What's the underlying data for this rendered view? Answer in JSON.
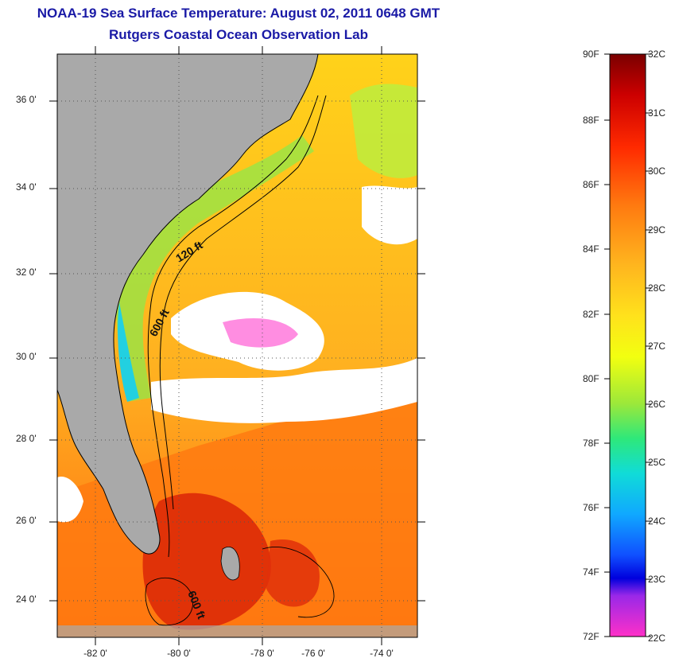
{
  "title": {
    "line1": "NOAA-19 Sea Surface Temperature:  August 02, 2011 0648 GMT",
    "line2": "Rutgers Coastal Ocean Observation Lab"
  },
  "map": {
    "latitude_labels": [
      "36 0'",
      "34 0'",
      "32 0'",
      "30 0'",
      "28 0'",
      "26 0'",
      "24 0'"
    ],
    "longitude_labels": [
      "-82 0'",
      "-80 0'",
      "-78 0'",
      "-76 0'",
      "-74 0'"
    ],
    "contour_labels": [
      "120 ft",
      "600 ft",
      "600 ft"
    ],
    "colors": {
      "land": "#a9a9a9",
      "cloud": "#ffffff"
    }
  },
  "colorbar": {
    "fahrenheit_labels": [
      "90F",
      "88F",
      "86F",
      "84F",
      "82F",
      "80F",
      "78F",
      "76F",
      "74F",
      "72F"
    ],
    "celsius_labels": [
      "32C",
      "31C",
      "30C",
      "29C",
      "28C",
      "27C",
      "26C",
      "25C",
      "24C",
      "23C",
      "22C"
    ],
    "gradient_colors": [
      "#7a0000",
      "#cc0000",
      "#ff2a00",
      "#ff7a10",
      "#ffb41e",
      "#ffe21c",
      "#f2ff10",
      "#9ce83a",
      "#2ee87a",
      "#10dcd8",
      "#10a8ff",
      "#1050ff",
      "#0000dd",
      "#9a28e8",
      "#ff30c8"
    ]
  }
}
